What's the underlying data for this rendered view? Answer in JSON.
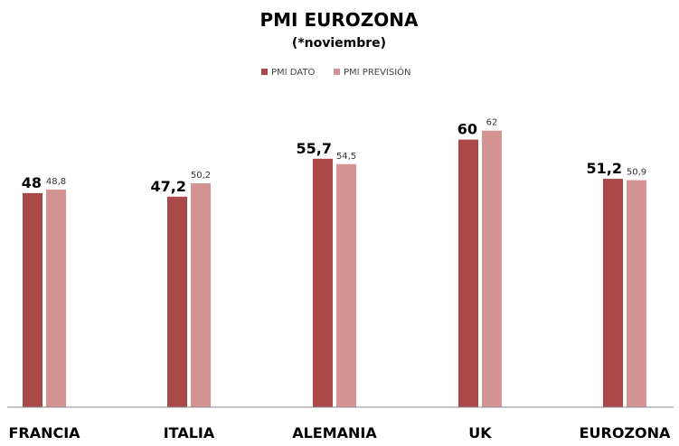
{
  "chart_data": {
    "type": "bar",
    "title": "PMI EUROZONA",
    "subtitle": "(*noviembre)",
    "categories": [
      "FRANCIA",
      "ITALIA",
      "ALEMANIA",
      "UK",
      "EUROZONA"
    ],
    "series": [
      {
        "name": "PMI DATO",
        "color": "#ab4848",
        "values": [
          48,
          47.2,
          55.7,
          60,
          51.2
        ],
        "labels": [
          "48",
          "47,2",
          "55,7",
          "60",
          "51,2"
        ]
      },
      {
        "name": "PMI PREVISIÓN",
        "color": "#d49494",
        "values": [
          48.8,
          50.2,
          54.5,
          62,
          50.9
        ],
        "labels": [
          "48,8",
          "50,2",
          "54,5",
          "62",
          "50,9"
        ]
      }
    ],
    "legend": "top",
    "grid": false
  }
}
